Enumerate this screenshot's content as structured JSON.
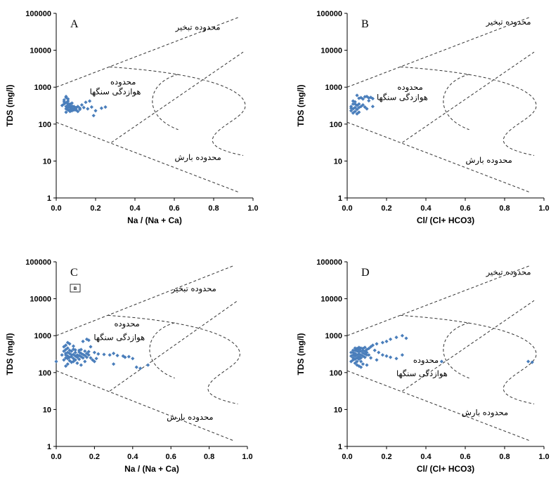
{
  "chart_data": [
    {
      "type": "scatter",
      "panel_letter": "A",
      "xlabel": "Na / (Na + Ca)",
      "ylabel": "TDS (mg/l)",
      "xlim": [
        0,
        1
      ],
      "ylim": [
        1,
        100000
      ],
      "y_scale": "log",
      "x_ticks": [
        "0.0",
        "0.2",
        "0.4",
        "0.6",
        "0.8",
        "1.0"
      ],
      "y_ticks": [
        "1",
        "10",
        "100",
        "1000",
        "10000",
        "100000"
      ],
      "region_labels": {
        "evaporation": "محدوده تبخیر",
        "weathering_1": "محدوده",
        "weathering_2": "هوازدگی سنگها",
        "precipitation": "محدوده بارش"
      },
      "marker_color": "#4a7ebb",
      "points": [
        [
          0.04,
          450
        ],
        [
          0.05,
          520
        ],
        [
          0.05,
          380
        ],
        [
          0.06,
          420
        ],
        [
          0.04,
          350
        ],
        [
          0.05,
          300
        ],
        [
          0.06,
          330
        ],
        [
          0.07,
          290
        ],
        [
          0.05,
          260
        ],
        [
          0.06,
          280
        ],
        [
          0.07,
          350
        ],
        [
          0.08,
          310
        ],
        [
          0.06,
          240
        ],
        [
          0.07,
          250
        ],
        [
          0.08,
          270
        ],
        [
          0.09,
          260
        ],
        [
          0.1,
          280
        ],
        [
          0.08,
          230
        ],
        [
          0.07,
          220
        ],
        [
          0.11,
          300
        ],
        [
          0.12,
          270
        ],
        [
          0.13,
          330
        ],
        [
          0.15,
          390
        ],
        [
          0.17,
          420
        ],
        [
          0.1,
          240
        ],
        [
          0.05,
          560
        ],
        [
          0.06,
          480
        ],
        [
          0.04,
          400
        ],
        [
          0.09,
          300
        ],
        [
          0.03,
          320
        ],
        [
          0.06,
          360
        ],
        [
          0.1,
          260
        ],
        [
          0.12,
          250
        ],
        [
          0.18,
          290
        ],
        [
          0.2,
          230
        ],
        [
          0.23,
          270
        ],
        [
          0.25,
          290
        ],
        [
          0.14,
          280
        ],
        [
          0.16,
          260
        ],
        [
          0.19,
          170
        ],
        [
          0.05,
          210
        ],
        [
          0.07,
          310
        ],
        [
          0.08,
          370
        ],
        [
          0.09,
          240
        ],
        [
          0.11,
          220
        ]
      ]
    },
    {
      "type": "scatter",
      "panel_letter": "B",
      "xlabel": "Cl/ (Cl+ HCO3)",
      "ylabel": "TDS (mg/l)",
      "xlim": [
        0,
        1
      ],
      "ylim": [
        1,
        100000
      ],
      "y_scale": "log",
      "x_ticks": [
        "0.0",
        "0.2",
        "0.4",
        "0.6",
        "0.8",
        "1.0"
      ],
      "y_ticks": [
        "1",
        "10",
        "100",
        "1000",
        "10000",
        "100000"
      ],
      "region_labels": {
        "evaporation": "محدوده تبخیر",
        "weathering_1": "محدوده",
        "weathering_2": "هوازدگی سنگها",
        "precipitation": "محدوده بارش"
      },
      "marker_color": "#4a7ebb",
      "points": [
        [
          0.02,
          300
        ],
        [
          0.03,
          350
        ],
        [
          0.03,
          260
        ],
        [
          0.04,
          280
        ],
        [
          0.02,
          230
        ],
        [
          0.04,
          400
        ],
        [
          0.05,
          320
        ],
        [
          0.05,
          250
        ],
        [
          0.06,
          210
        ],
        [
          0.03,
          420
        ],
        [
          0.06,
          500
        ],
        [
          0.07,
          520
        ],
        [
          0.08,
          480
        ],
        [
          0.09,
          550
        ],
        [
          0.1,
          560
        ],
        [
          0.11,
          510
        ],
        [
          0.12,
          530
        ],
        [
          0.13,
          490
        ],
        [
          0.11,
          430
        ],
        [
          0.06,
          350
        ],
        [
          0.07,
          300
        ],
        [
          0.04,
          220
        ],
        [
          0.05,
          190
        ],
        [
          0.02,
          270
        ],
        [
          0.08,
          330
        ],
        [
          0.09,
          290
        ],
        [
          0.1,
          260
        ],
        [
          0.13,
          300
        ],
        [
          0.05,
          600
        ],
        [
          0.04,
          350
        ],
        [
          0.03,
          200
        ],
        [
          0.06,
          280
        ]
      ]
    },
    {
      "type": "scatter",
      "panel_letter": "C",
      "box_label": "B",
      "xlabel": "Na / (Na + Ca)",
      "ylabel": "TDS (mg/l)",
      "xlim": [
        0,
        1
      ],
      "ylim": [
        1,
        100000
      ],
      "y_scale": "log",
      "x_ticks": [
        "0.0",
        "0.2",
        "0.4",
        "0.6",
        "0.8",
        "1.0"
      ],
      "y_ticks": [
        "1",
        "10",
        "100",
        "1000",
        "10000",
        "100000"
      ],
      "region_labels": {
        "evaporation": "محدوده تبخیر",
        "weathering_1": "محدوده",
        "weathering_2": "هوازدگی سنگها",
        "precipitation": "محدوده بارش"
      },
      "marker_color": "#4a7ebb",
      "points": [
        [
          0.0,
          200
        ],
        [
          0.04,
          220
        ],
        [
          0.05,
          250
        ],
        [
          0.05,
          300
        ],
        [
          0.06,
          350
        ],
        [
          0.06,
          280
        ],
        [
          0.07,
          260
        ],
        [
          0.07,
          330
        ],
        [
          0.08,
          300
        ],
        [
          0.08,
          270
        ],
        [
          0.09,
          240
        ],
        [
          0.09,
          310
        ],
        [
          0.1,
          280
        ],
        [
          0.1,
          350
        ],
        [
          0.11,
          300
        ],
        [
          0.11,
          260
        ],
        [
          0.12,
          230
        ],
        [
          0.12,
          290
        ],
        [
          0.13,
          330
        ],
        [
          0.13,
          270
        ],
        [
          0.14,
          250
        ],
        [
          0.14,
          310
        ],
        [
          0.15,
          290
        ],
        [
          0.16,
          260
        ],
        [
          0.05,
          420
        ],
        [
          0.06,
          460
        ],
        [
          0.07,
          400
        ],
        [
          0.08,
          380
        ],
        [
          0.09,
          430
        ],
        [
          0.1,
          410
        ],
        [
          0.12,
          360
        ],
        [
          0.11,
          180
        ],
        [
          0.13,
          160
        ],
        [
          0.15,
          200
        ],
        [
          0.08,
          190
        ],
        [
          0.06,
          170
        ],
        [
          0.05,
          150
        ],
        [
          0.04,
          500
        ],
        [
          0.05,
          550
        ],
        [
          0.06,
          650
        ],
        [
          0.07,
          600
        ],
        [
          0.09,
          520
        ],
        [
          0.14,
          700
        ],
        [
          0.16,
          800
        ],
        [
          0.18,
          500
        ],
        [
          0.17,
          750
        ],
        [
          0.2,
          350
        ],
        [
          0.22,
          320
        ],
        [
          0.25,
          310
        ],
        [
          0.28,
          300
        ],
        [
          0.3,
          330
        ],
        [
          0.32,
          290
        ],
        [
          0.35,
          280
        ],
        [
          0.36,
          260
        ],
        [
          0.38,
          270
        ],
        [
          0.4,
          240
        ],
        [
          0.3,
          170
        ],
        [
          0.42,
          140
        ],
        [
          0.44,
          130
        ],
        [
          0.48,
          160
        ],
        [
          0.18,
          250
        ],
        [
          0.19,
          220
        ],
        [
          0.2,
          200
        ],
        [
          0.21,
          240
        ],
        [
          0.16,
          330
        ],
        [
          0.17,
          300
        ],
        [
          0.1,
          220
        ],
        [
          0.09,
          200
        ],
        [
          0.07,
          210
        ],
        [
          0.06,
          240
        ],
        [
          0.05,
          330
        ],
        [
          0.04,
          380
        ],
        [
          0.03,
          300
        ],
        [
          0.12,
          400
        ],
        [
          0.13,
          420
        ],
        [
          0.15,
          380
        ],
        [
          0.17,
          370
        ]
      ]
    },
    {
      "type": "scatter",
      "panel_letter": "D",
      "xlabel": "Cl/ (Cl+ HCO3)",
      "ylabel": "TDS (mg/l)",
      "xlim": [
        0,
        1
      ],
      "ylim": [
        1,
        100000
      ],
      "y_scale": "log",
      "x_ticks": [
        "0.0",
        "0.2",
        "0.4",
        "0.6",
        "0.8",
        "1.0"
      ],
      "y_ticks": [
        "1",
        "10",
        "100",
        "1000",
        "10000",
        "100000"
      ],
      "region_labels": {
        "evaporation": "محدوده تبخیر",
        "weathering_1": "محدوده",
        "weathering_2": "هوازدگی سنگها",
        "precipitation": "محدوده بارش"
      },
      "marker_color": "#4a7ebb",
      "points": [
        [
          0.02,
          200
        ],
        [
          0.03,
          250
        ],
        [
          0.03,
          300
        ],
        [
          0.03,
          350
        ],
        [
          0.04,
          280
        ],
        [
          0.04,
          400
        ],
        [
          0.04,
          330
        ],
        [
          0.05,
          250
        ],
        [
          0.05,
          300
        ],
        [
          0.05,
          380
        ],
        [
          0.05,
          450
        ],
        [
          0.06,
          270
        ],
        [
          0.06,
          320
        ],
        [
          0.06,
          360
        ],
        [
          0.06,
          420
        ],
        [
          0.07,
          300
        ],
        [
          0.07,
          380
        ],
        [
          0.07,
          250
        ],
        [
          0.08,
          340
        ],
        [
          0.08,
          280
        ],
        [
          0.08,
          400
        ],
        [
          0.09,
          320
        ],
        [
          0.09,
          260
        ],
        [
          0.1,
          300
        ],
        [
          0.04,
          180
        ],
        [
          0.05,
          160
        ],
        [
          0.06,
          150
        ],
        [
          0.07,
          140
        ],
        [
          0.08,
          170
        ],
        [
          0.03,
          220
        ],
        [
          0.02,
          280
        ],
        [
          0.02,
          350
        ],
        [
          0.04,
          230
        ],
        [
          0.05,
          200
        ],
        [
          0.06,
          230
        ],
        [
          0.07,
          200
        ],
        [
          0.09,
          380
        ],
        [
          0.1,
          420
        ],
        [
          0.11,
          450
        ],
        [
          0.12,
          500
        ],
        [
          0.13,
          550
        ],
        [
          0.15,
          600
        ],
        [
          0.18,
          650
        ],
        [
          0.2,
          700
        ],
        [
          0.22,
          800
        ],
        [
          0.25,
          900
        ],
        [
          0.28,
          1000
        ],
        [
          0.3,
          850
        ],
        [
          0.14,
          400
        ],
        [
          0.16,
          350
        ],
        [
          0.18,
          300
        ],
        [
          0.2,
          280
        ],
        [
          0.22,
          260
        ],
        [
          0.25,
          240
        ],
        [
          0.28,
          300
        ],
        [
          0.12,
          250
        ],
        [
          0.15,
          220
        ],
        [
          0.1,
          160
        ],
        [
          0.48,
          200
        ],
        [
          0.92,
          200
        ],
        [
          0.94,
          190
        ],
        [
          0.08,
          450
        ],
        [
          0.09,
          480
        ],
        [
          0.07,
          460
        ],
        [
          0.06,
          480
        ],
        [
          0.05,
          420
        ],
        [
          0.1,
          350
        ],
        [
          0.11,
          300
        ],
        [
          0.03,
          400
        ],
        [
          0.04,
          460
        ]
      ]
    }
  ]
}
